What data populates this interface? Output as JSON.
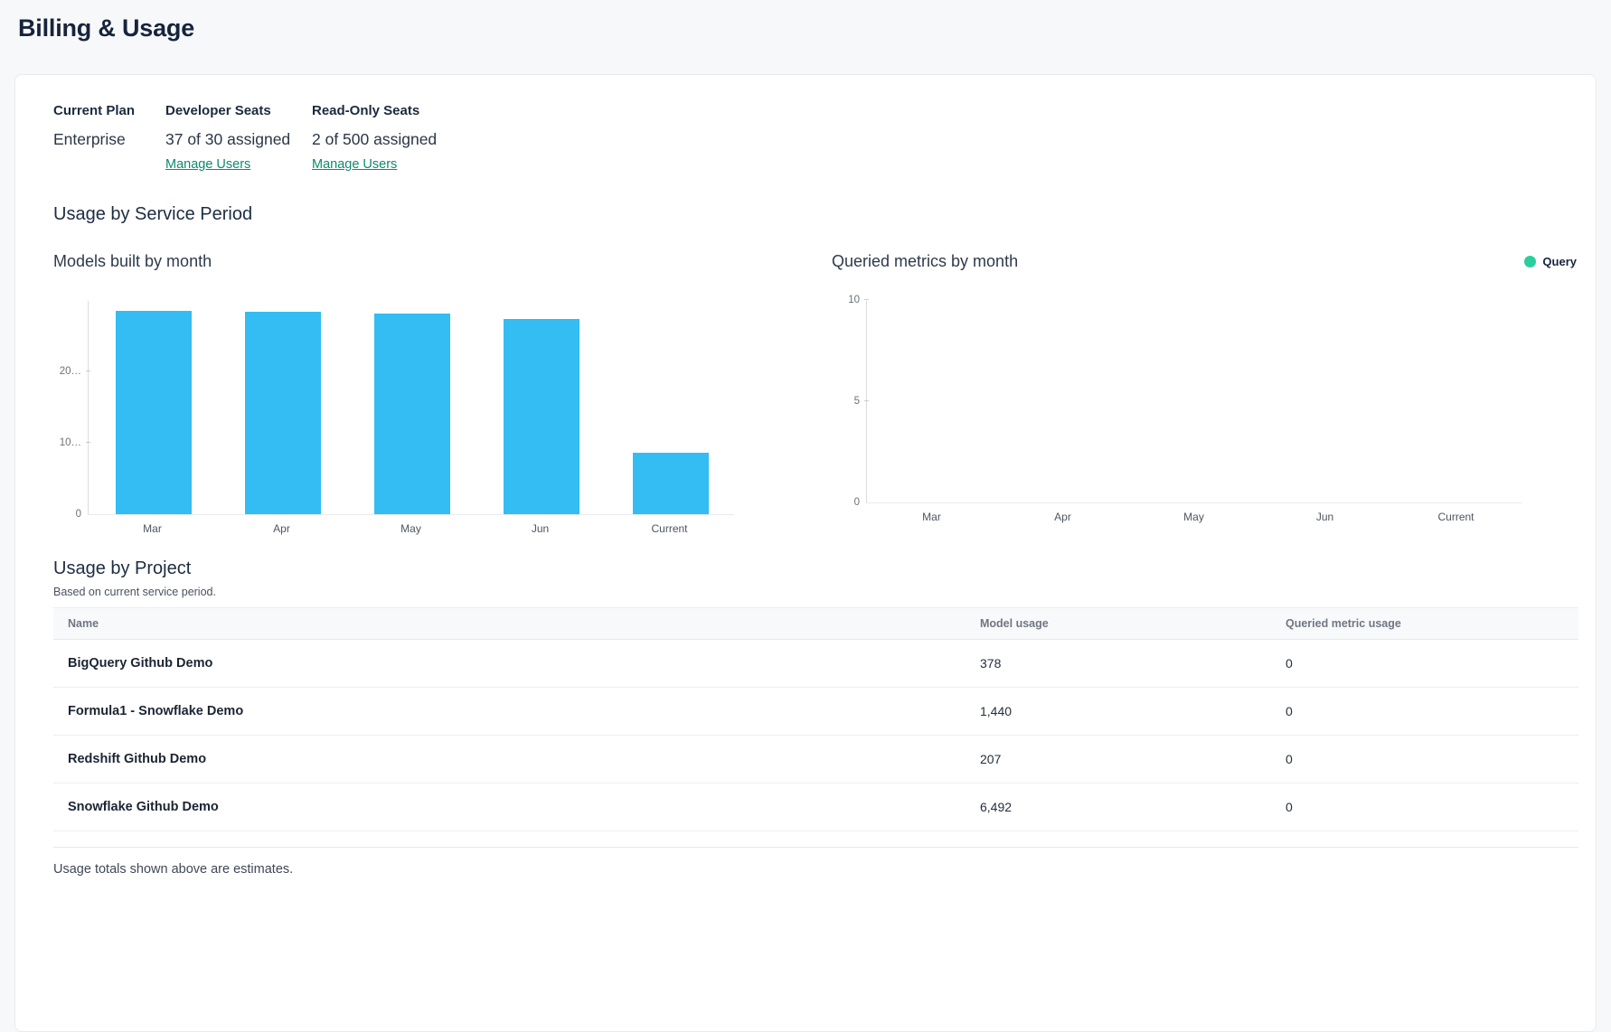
{
  "page": {
    "title": "Billing & Usage"
  },
  "plan": {
    "columns": [
      {
        "label": "Current Plan",
        "value": "Enterprise"
      },
      {
        "label": "Developer Seats",
        "value": "37 of 30 assigned",
        "link": "Manage Users"
      },
      {
        "label": "Read-Only Seats",
        "value": "2 of 500 assigned",
        "link": "Manage Users"
      }
    ]
  },
  "sections": {
    "service_period_title": "Usage by Service Period",
    "project_title": "Usage by Project",
    "project_subtitle": "Based on current service period."
  },
  "chart_data": [
    {
      "type": "bar",
      "title": "Models built by month",
      "categories": [
        "Mar",
        "Apr",
        "May",
        "Jun",
        "Current"
      ],
      "values": [
        28500,
        28300,
        28100,
        27400,
        8600
      ],
      "ylim": [
        0,
        30000
      ],
      "yticks": [
        {
          "value": 0,
          "label": "0"
        },
        {
          "value": 10000,
          "label": "10…"
        },
        {
          "value": 20000,
          "label": "20…"
        }
      ],
      "bar_color": "#33bdf2",
      "grid": false,
      "legend": null
    },
    {
      "type": "bar",
      "title": "Queried metrics by month",
      "categories": [
        "Mar",
        "Apr",
        "May",
        "Jun",
        "Current"
      ],
      "values": [
        0,
        0,
        0,
        0,
        0
      ],
      "ylim": [
        0,
        10
      ],
      "yticks": [
        {
          "value": 0,
          "label": "0"
        },
        {
          "value": 5,
          "label": "5"
        },
        {
          "value": 10,
          "label": "10"
        }
      ],
      "bar_color": "#2bce9e",
      "grid": false,
      "legend": [
        {
          "label": "Query",
          "color": "#2bce9e"
        }
      ]
    }
  ],
  "table": {
    "headers": [
      "Name",
      "Model usage",
      "Queried metric usage"
    ],
    "rows": [
      {
        "name": "BigQuery Github Demo",
        "model_usage": "378",
        "queried_metric_usage": "0"
      },
      {
        "name": "Formula1 - Snowflake Demo",
        "model_usage": "1,440",
        "queried_metric_usage": "0"
      },
      {
        "name": "Redshift Github Demo",
        "model_usage": "207",
        "queried_metric_usage": "0"
      },
      {
        "name": "Snowflake Github Demo",
        "model_usage": "6,492",
        "queried_metric_usage": "0"
      }
    ]
  },
  "footer": {
    "note": "Usage totals shown above are estimates."
  },
  "colors": {
    "bar_cyan": "#33bdf2",
    "legend_green": "#2bce9e",
    "link_teal": "#0e8a6e",
    "heading_navy": "#16243c",
    "page_background": "#f7f8f9"
  }
}
